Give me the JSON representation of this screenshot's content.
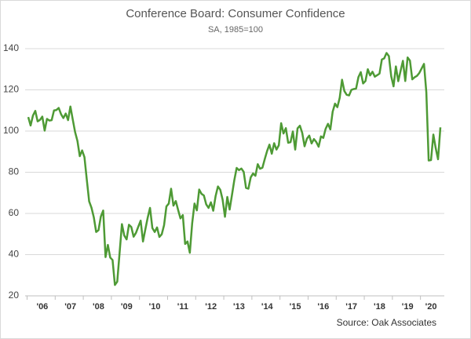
{
  "chart_data": {
    "type": "line",
    "title": "Conference Board: Consumer Confidence",
    "subtitle": "SA, 1985=100",
    "source": "Source: Oak Associates",
    "categories": [
      null,
      null,
      null,
      null,
      null,
      null,
      "'06",
      null,
      null,
      null,
      null,
      null,
      null,
      null,
      null,
      null,
      null,
      null,
      "'07",
      null,
      null,
      null,
      null,
      null,
      null,
      null,
      null,
      null,
      null,
      null,
      "'08",
      null,
      null,
      null,
      null,
      null,
      null,
      null,
      null,
      null,
      null,
      null,
      "'09",
      null,
      null,
      null,
      null,
      null,
      null,
      null,
      null,
      null,
      null,
      null,
      "'10",
      null,
      null,
      null,
      null,
      null,
      null,
      null,
      null,
      null,
      null,
      null,
      "'11",
      null,
      null,
      null,
      null,
      null,
      null,
      null,
      null,
      null,
      null,
      null,
      "'12",
      null,
      null,
      null,
      null,
      null,
      null,
      null,
      null,
      null,
      null,
      null,
      "'13",
      null,
      null,
      null,
      null,
      null,
      null,
      null,
      null,
      null,
      null,
      null,
      "'14",
      null,
      null,
      null,
      null,
      null,
      null,
      null,
      null,
      null,
      null,
      null,
      "'15",
      null,
      null,
      null,
      null,
      null,
      null,
      null,
      null,
      null,
      null,
      null,
      "'16",
      null,
      null,
      null,
      null,
      null,
      null,
      null,
      null,
      null,
      null,
      null,
      "'17",
      null,
      null,
      null,
      null,
      null,
      null,
      null,
      null,
      null,
      null,
      null,
      "'18",
      null,
      null,
      null,
      null,
      null,
      null,
      null,
      null,
      null,
      null,
      null,
      "'19",
      null,
      null,
      null,
      null,
      null,
      null,
      null,
      null,
      null,
      "'20",
      null,
      null,
      null,
      null
    ],
    "series": [
      {
        "name": "Consumer Confidence",
        "color": "#4e9a35",
        "values": [
          106.8,
          102.7,
          107.5,
          109.8,
          104.7,
          105.4,
          107.0,
          100.2,
          105.9,
          105.1,
          105.3,
          110.0,
          110.2,
          111.2,
          108.2,
          106.3,
          108.5,
          105.3,
          111.9,
          105.6,
          99.5,
          95.2,
          87.8,
          90.6,
          87.3,
          76.4,
          65.9,
          62.8,
          58.1,
          51.0,
          51.9,
          58.5,
          61.4,
          38.8,
          44.7,
          38.6,
          37.4,
          25.3,
          26.9,
          40.8,
          54.8,
          49.3,
          47.4,
          54.5,
          53.4,
          48.7,
          50.6,
          53.6,
          56.5,
          46.4,
          52.3,
          57.9,
          62.7,
          52.9,
          51.0,
          53.2,
          48.6,
          49.9,
          54.3,
          63.4,
          64.8,
          72.0,
          63.8,
          66.0,
          61.7,
          57.6,
          59.2,
          45.2,
          46.4,
          40.9,
          55.2,
          64.8,
          61.5,
          71.6,
          69.5,
          68.7,
          64.4,
          62.7,
          65.4,
          61.3,
          68.4,
          73.1,
          71.5,
          66.7,
          58.4,
          68.0,
          61.9,
          69.0,
          76.2,
          82.1,
          81.0,
          81.8,
          80.2,
          72.4,
          72.0,
          77.5,
          79.4,
          78.3,
          83.9,
          81.7,
          82.2,
          86.4,
          90.3,
          93.4,
          89.0,
          94.1,
          91.0,
          93.1,
          103.8,
          98.8,
          101.4,
          94.3,
          94.6,
          99.8,
          91.0,
          101.3,
          102.6,
          99.1,
          92.6,
          96.3,
          97.8,
          94.0,
          96.1,
          94.7,
          92.4,
          97.4,
          96.7,
          101.1,
          103.5,
          100.8,
          109.4,
          113.3,
          111.6,
          116.1,
          124.9,
          119.4,
          117.6,
          117.3,
          120.0,
          120.4,
          120.6,
          126.2,
          128.6,
          123.1,
          124.3,
          130.0,
          127.0,
          128.8,
          126.4,
          127.1,
          127.9,
          134.7,
          135.3,
          137.9,
          136.4,
          126.6,
          121.7,
          131.4,
          124.2,
          129.2,
          134.1,
          124.3,
          135.7,
          134.2,
          125.1,
          126.1,
          126.8,
          128.2,
          130.4,
          132.6,
          118.8,
          85.7,
          85.9,
          98.3,
          91.7,
          86.3,
          101.8
        ]
      }
    ],
    "ylim": [
      20,
      140
    ],
    "yticks": [
      20,
      40,
      60,
      80,
      100,
      120,
      140
    ],
    "grid": true
  }
}
